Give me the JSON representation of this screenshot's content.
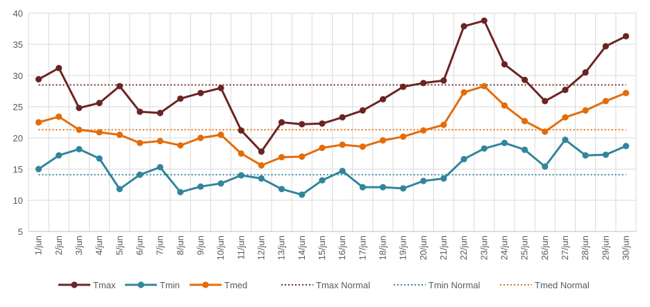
{
  "chart_data": {
    "type": "line",
    "title": "",
    "xlabel": "",
    "ylabel": "",
    "ylim": [
      5,
      40
    ],
    "yticks": [
      5,
      10,
      15,
      20,
      25,
      30,
      35,
      40
    ],
    "grid": true,
    "legend_position": "bottom",
    "categories": [
      "1/jun",
      "2/jun",
      "3/jun",
      "4/jun",
      "5/jun",
      "6/jun",
      "7/jun",
      "8/jun",
      "9/jun",
      "10/jun",
      "11/jun",
      "12/jun",
      "13/jun",
      "14/jun",
      "15/jun",
      "16/jun",
      "17/jun",
      "18/jun",
      "19/jun",
      "20/jun",
      "21/jun",
      "22/jun",
      "23/jun",
      "24/jun",
      "25/jun",
      "26/jun",
      "27/jun",
      "28/jun",
      "29/jun",
      "30/jun"
    ],
    "series": [
      {
        "name": "Tmax",
        "style": "solid-marker",
        "color": "#6B2423",
        "values": [
          29.4,
          31.2,
          24.8,
          25.6,
          28.3,
          24.2,
          24.0,
          26.3,
          27.2,
          28.0,
          21.2,
          17.8,
          22.5,
          22.2,
          22.3,
          23.3,
          24.4,
          26.2,
          28.2,
          28.8,
          29.2,
          37.9,
          38.8,
          31.8,
          29.3,
          25.9,
          27.7,
          30.5,
          34.7,
          36.3
        ]
      },
      {
        "name": "Tmin",
        "style": "solid-marker",
        "color": "#31859C",
        "values": [
          15.0,
          17.2,
          18.2,
          16.7,
          11.8,
          14.1,
          15.3,
          11.3,
          12.2,
          12.7,
          14.0,
          13.5,
          11.8,
          10.9,
          13.2,
          14.7,
          12.1,
          12.1,
          11.9,
          13.1,
          13.5,
          16.6,
          18.3,
          19.2,
          18.1,
          15.4,
          19.7,
          17.2,
          17.3,
          18.7
        ]
      },
      {
        "name": "Tmed",
        "style": "solid-marker",
        "color": "#E46C0A",
        "values": [
          22.5,
          23.4,
          21.3,
          20.9,
          20.5,
          19.2,
          19.5,
          18.8,
          20.0,
          20.5,
          17.5,
          15.6,
          16.9,
          17.0,
          18.4,
          18.9,
          18.6,
          19.6,
          20.2,
          21.2,
          22.1,
          27.3,
          28.3,
          25.2,
          22.7,
          21.0,
          23.3,
          24.4,
          25.9,
          27.2
        ]
      },
      {
        "name": "Tmax Normal",
        "style": "dotted",
        "color": "#6B2423",
        "constant": 28.5
      },
      {
        "name": "Tmin Normal",
        "style": "dotted",
        "color": "#31859C",
        "constant": 14.1
      },
      {
        "name": "Tmed Normal",
        "style": "dotted",
        "color": "#E46C0A",
        "constant": 21.3
      }
    ]
  }
}
